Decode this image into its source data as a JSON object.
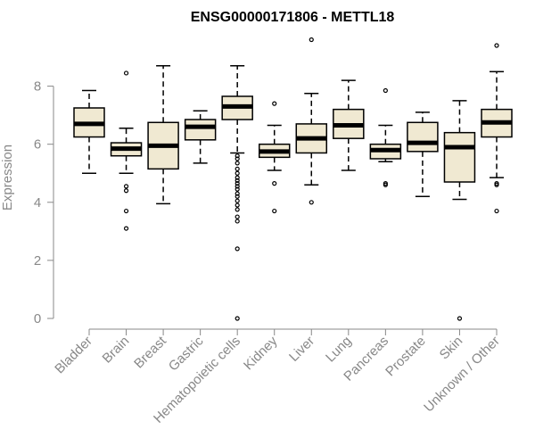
{
  "chart_data": {
    "type": "boxplot",
    "title": "ENSG00000171806 - METTL18",
    "xlabel": "",
    "ylabel": "Expression",
    "ylim": [
      0,
      9.8
    ],
    "yticks": [
      0,
      2,
      4,
      6,
      8
    ],
    "box_fill": "#f0e9d2",
    "categories": [
      "Bladder",
      "Brain",
      "Breast",
      "Gastric",
      "Hematopoietic cells",
      "Kidney",
      "Liver",
      "Lung",
      "Pancreas",
      "Prostate",
      "Skin",
      "Unknown / Other"
    ],
    "boxes": [
      {
        "min": 5.0,
        "q1": 6.25,
        "median": 6.7,
        "q3": 7.25,
        "max": 7.85,
        "outliers": []
      },
      {
        "min": 5.0,
        "q1": 5.6,
        "median": 5.85,
        "q3": 6.05,
        "max": 6.55,
        "outliers": [
          8.45,
          4.55,
          4.4,
          3.7,
          3.1
        ]
      },
      {
        "min": 3.95,
        "q1": 5.15,
        "median": 5.95,
        "q3": 6.75,
        "max": 8.7,
        "outliers": []
      },
      {
        "min": 5.35,
        "q1": 6.15,
        "median": 6.6,
        "q3": 6.85,
        "max": 7.15,
        "outliers": []
      },
      {
        "min": 5.7,
        "q1": 6.85,
        "median": 7.3,
        "q3": 7.65,
        "max": 8.7,
        "outliers": [
          5.6,
          5.5,
          5.35,
          5.15,
          5.0,
          4.85,
          4.75,
          4.65,
          4.55,
          4.45,
          4.3,
          4.2,
          4.05,
          3.9,
          3.75,
          3.5,
          3.35,
          2.4,
          0.0
        ]
      },
      {
        "min": 5.1,
        "q1": 5.55,
        "median": 5.75,
        "q3": 6.0,
        "max": 6.65,
        "outliers": [
          7.4,
          4.65,
          3.7
        ]
      },
      {
        "min": 4.6,
        "q1": 5.7,
        "median": 6.2,
        "q3": 6.7,
        "max": 7.75,
        "outliers": [
          9.6,
          4.0
        ]
      },
      {
        "min": 5.1,
        "q1": 6.2,
        "median": 6.65,
        "q3": 7.2,
        "max": 8.2,
        "outliers": []
      },
      {
        "min": 5.4,
        "q1": 5.5,
        "median": 5.8,
        "q3": 6.0,
        "max": 6.65,
        "outliers": [
          7.85,
          4.65,
          4.6
        ]
      },
      {
        "min": 4.2,
        "q1": 5.75,
        "median": 6.05,
        "q3": 6.75,
        "max": 7.1,
        "outliers": []
      },
      {
        "min": 4.1,
        "q1": 4.7,
        "median": 5.9,
        "q3": 6.4,
        "max": 7.5,
        "outliers": [
          0.0
        ]
      },
      {
        "min": 4.85,
        "q1": 6.25,
        "median": 6.75,
        "q3": 7.2,
        "max": 8.5,
        "outliers": [
          9.4,
          4.65,
          4.6,
          3.7
        ]
      }
    ]
  }
}
